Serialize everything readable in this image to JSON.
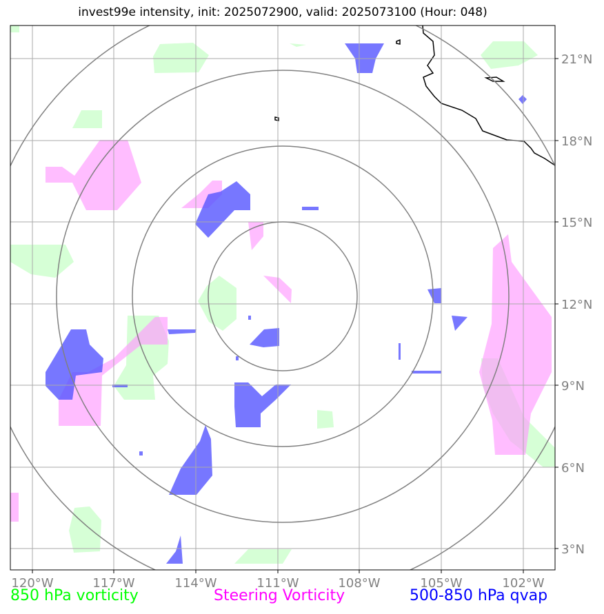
{
  "title": "invest99e intensity, init: 2025072900, valid: 2025073100 (Hour: 048)",
  "lat_labels": [
    "21°N",
    "18°N",
    "15°N",
    "12°N",
    "9°N",
    "6°N",
    "3°N"
  ],
  "lon_labels": [
    "120°W",
    "117°W",
    "114°W",
    "111°W",
    "108°W",
    "105°W",
    "102°W"
  ],
  "legend": {
    "vort850": {
      "label": "850 hPa vorticity",
      "color": "#00ff00"
    },
    "steering": {
      "label": "Steering Vorticity",
      "color": "#ff00ff"
    },
    "qvap": {
      "label": "500-850 hPa qvap",
      "color": "#0000ff"
    }
  },
  "colors": {
    "vort850_fill": "#ccffcc",
    "steering_fill": "#ff99ff",
    "qvap_fill": "#5555ff",
    "grid": "#aaaaaa",
    "rings": "#808080",
    "coast": "#000000"
  }
}
